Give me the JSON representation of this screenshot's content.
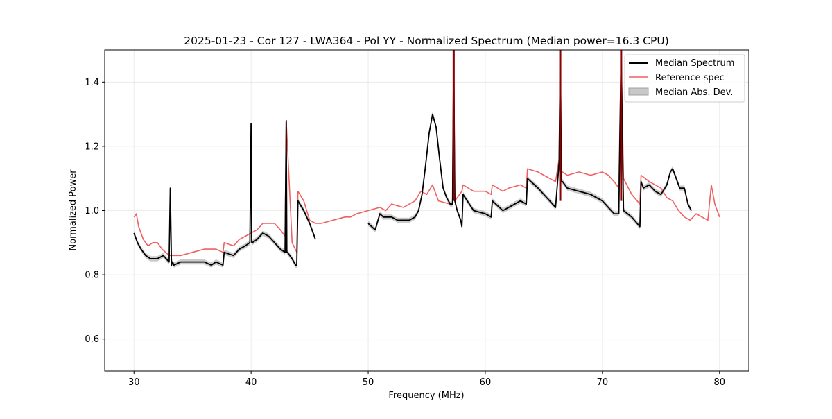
{
  "chart_data": {
    "type": "line",
    "title": "2025-01-23 - Cor 127 - LWA364 - Pol YY - Normalized Spectrum (Median power=16.3 CPU)",
    "xlabel": "Frequency (MHz)",
    "ylabel": "Normalized Power",
    "xlim": [
      27.5,
      82.5
    ],
    "ylim": [
      0.5,
      1.5
    ],
    "xticks": [
      30,
      40,
      50,
      60,
      70,
      80
    ],
    "yticks": [
      0.6,
      0.8,
      1.0,
      1.2,
      1.4
    ],
    "xtick_labels": [
      "30",
      "40",
      "50",
      "60",
      "70",
      "80"
    ],
    "ytick_labels": [
      "0.6",
      "0.8",
      "1.0",
      "1.2",
      "1.4"
    ],
    "grid": true,
    "legend_position": "top-right",
    "legend": [
      "Median Spectrum",
      "Reference spec",
      "Median Abs. Dev."
    ],
    "colors": {
      "median": "#000000",
      "reference": "#f06060",
      "mad": "#bdbdbd",
      "spike": "#8b0000"
    },
    "mad_halfwidth": 0.008,
    "series": [
      {
        "name": "Median Spectrum",
        "segments": [
          {
            "x": [
              30.0,
              30.3,
              30.6,
              31.0,
              31.4,
              32.0,
              32.5,
              33.0,
              33.1,
              33.2,
              33.3,
              33.4,
              34.0,
              35.0,
              36.0,
              36.6,
              37.0,
              37.6,
              37.7,
              38.5,
              39.0,
              39.5,
              39.9,
              40.0,
              40.05,
              40.1,
              40.5,
              41.0,
              41.5,
              42.0,
              42.5,
              42.9,
              43.0,
              43.05,
              43.1,
              43.5,
              43.8,
              43.9,
              44.0,
              44.5,
              45.0,
              45.5
            ],
            "y": [
              0.93,
              0.9,
              0.88,
              0.86,
              0.85,
              0.85,
              0.86,
              0.84,
              1.07,
              0.83,
              0.84,
              0.83,
              0.84,
              0.84,
              0.84,
              0.83,
              0.84,
              0.83,
              0.87,
              0.86,
              0.88,
              0.89,
              0.9,
              1.27,
              0.9,
              0.9,
              0.91,
              0.93,
              0.92,
              0.9,
              0.88,
              0.87,
              1.28,
              0.87,
              0.87,
              0.85,
              0.83,
              0.83,
              1.03,
              1.0,
              0.96,
              0.91
            ]
          },
          {
            "x": [
              50.0,
              50.3,
              50.6,
              51.0,
              51.3,
              51.6,
              52.0,
              52.5,
              53.0,
              53.5,
              54.0,
              54.3,
              54.6,
              54.9,
              55.2,
              55.5,
              55.8,
              56.1,
              56.4,
              56.7,
              57.0,
              57.2,
              57.3,
              57.4,
              57.6,
              57.9,
              58.0,
              58.1,
              59.0,
              60.0,
              60.5,
              60.6,
              61.5,
              62.0,
              63.0,
              63.5,
              63.6,
              64.5,
              65.0,
              65.5,
              66.0,
              66.3,
              66.4,
              66.5,
              66.6,
              67.0,
              68.0,
              69.0,
              70.0,
              70.5,
              71.0,
              71.4,
              71.6,
              71.8,
              72.5,
              73.2,
              73.3,
              73.5,
              74.0,
              74.5,
              75.0,
              75.5,
              75.8,
              76.0,
              76.3,
              76.6,
              77.0,
              77.3,
              77.6
            ],
            "y": [
              0.96,
              0.95,
              0.94,
              0.99,
              0.98,
              0.98,
              0.98,
              0.97,
              0.97,
              0.97,
              0.98,
              1.0,
              1.05,
              1.14,
              1.24,
              1.3,
              1.26,
              1.16,
              1.07,
              1.04,
              1.02,
              1.02,
              1.5,
              1.03,
              1.0,
              0.97,
              0.95,
              1.05,
              1.0,
              0.99,
              0.98,
              1.03,
              1.0,
              1.01,
              1.03,
              1.02,
              1.1,
              1.07,
              1.05,
              1.03,
              1.01,
              1.15,
              1.5,
              1.09,
              1.09,
              1.07,
              1.06,
              1.05,
              1.03,
              1.01,
              0.99,
              0.99,
              1.5,
              1.0,
              0.98,
              0.95,
              1.09,
              1.07,
              1.08,
              1.06,
              1.05,
              1.08,
              1.12,
              1.13,
              1.1,
              1.07,
              1.07,
              1.02,
              1.0
            ]
          }
        ]
      },
      {
        "name": "Reference spec",
        "segments": [
          {
            "x": [
              30.0,
              30.2,
              30.4,
              30.8,
              31.2,
              31.6,
              32.0,
              32.4,
              33.0,
              33.2,
              33.4,
              34.0,
              35.0,
              36.0,
              37.0,
              37.6,
              37.7,
              38.5,
              39.0,
              39.5,
              40.0,
              40.5,
              41.0,
              41.5,
              42.0,
              42.5,
              42.9,
              43.0,
              43.5,
              43.9,
              44.0,
              44.5,
              45.0,
              45.5,
              46.0,
              47.0,
              48.0,
              48.5,
              49.0,
              50.0,
              51.0,
              51.5,
              52.0,
              53.0,
              54.0,
              54.5,
              55.0,
              55.5,
              56.0,
              57.0,
              57.2,
              57.3,
              57.4,
              58.0,
              58.1,
              59.0,
              60.0,
              60.5,
              60.6,
              61.5,
              62.0,
              63.0,
              63.5,
              63.6,
              64.5,
              65.0,
              65.5,
              66.0,
              66.3,
              66.4,
              66.5,
              66.6,
              67.0,
              68.0,
              69.0,
              70.0,
              70.5,
              71.0,
              71.4,
              71.6,
              71.8,
              72.5,
              73.2,
              73.3,
              74.0,
              75.0,
              75.5,
              76.0,
              76.5,
              77.0,
              77.5,
              78.0,
              78.5,
              79.0,
              79.3,
              79.6,
              80.0
            ],
            "y": [
              0.98,
              0.99,
              0.95,
              0.91,
              0.89,
              0.9,
              0.9,
              0.88,
              0.86,
              0.86,
              0.86,
              0.86,
              0.87,
              0.88,
              0.88,
              0.87,
              0.9,
              0.89,
              0.91,
              0.92,
              0.93,
              0.94,
              0.96,
              0.96,
              0.96,
              0.94,
              0.92,
              1.28,
              0.9,
              0.87,
              1.06,
              1.03,
              0.97,
              0.96,
              0.96,
              0.97,
              0.98,
              0.98,
              0.99,
              1.0,
              1.01,
              1.0,
              1.02,
              1.01,
              1.03,
              1.06,
              1.05,
              1.08,
              1.03,
              1.02,
              1.02,
              1.5,
              1.03,
              1.06,
              1.08,
              1.06,
              1.06,
              1.05,
              1.08,
              1.06,
              1.07,
              1.08,
              1.07,
              1.13,
              1.12,
              1.11,
              1.1,
              1.09,
              1.16,
              1.5,
              1.12,
              1.12,
              1.11,
              1.12,
              1.11,
              1.12,
              1.11,
              1.09,
              1.07,
              1.5,
              1.1,
              1.05,
              1.02,
              1.11,
              1.09,
              1.07,
              1.04,
              1.03,
              1.0,
              0.98,
              0.97,
              0.99,
              0.98,
              0.97,
              1.08,
              1.02,
              0.98
            ]
          }
        ]
      }
    ]
  }
}
